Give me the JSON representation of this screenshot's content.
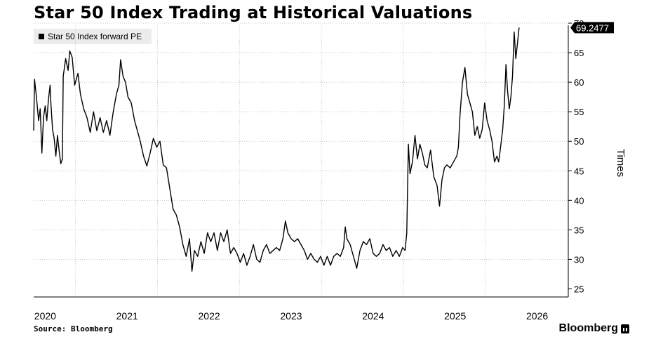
{
  "chart_data": {
    "type": "line",
    "title": "Star 50 Index Trading at Historical Valuations",
    "legend": "Star 50 Index forward PE",
    "ylabel": "Times",
    "ylim": [
      25,
      70
    ],
    "yticks": [
      25,
      30,
      35,
      40,
      45,
      50,
      55,
      60,
      65,
      70
    ],
    "xlim": [
      2019.86,
      2026.38
    ],
    "xticks": [
      {
        "label": "2020",
        "x": 2020.0
      },
      {
        "label": "2021",
        "x": 2021.0
      },
      {
        "label": "2022",
        "x": 2022.0
      },
      {
        "label": "2023",
        "x": 2023.0
      },
      {
        "label": "2024",
        "x": 2024.0
      },
      {
        "label": "2025",
        "x": 2025.0
      },
      {
        "label": "2026",
        "x": 2026.0
      }
    ],
    "x_gridlines": [
      2020.37,
      2021.37,
      2022.37,
      2023.37,
      2024.37,
      2025.37
    ],
    "grid": true,
    "last_value_label": "69.2477",
    "series": [
      {
        "name": "Star 50 Index forward PE",
        "color": "#000000",
        "points": [
          [
            2019.86,
            51.8
          ],
          [
            2019.87,
            60.5
          ],
          [
            2019.89,
            58.0
          ],
          [
            2019.9,
            56.5
          ],
          [
            2019.92,
            53.5
          ],
          [
            2019.94,
            55.5
          ],
          [
            2019.96,
            48.0
          ],
          [
            2019.98,
            54.0
          ],
          [
            2020.0,
            56.0
          ],
          [
            2020.02,
            53.5
          ],
          [
            2020.04,
            57.0
          ],
          [
            2020.06,
            59.5
          ],
          [
            2020.07,
            56.5
          ],
          [
            2020.09,
            52.0
          ],
          [
            2020.11,
            50.5
          ],
          [
            2020.13,
            47.5
          ],
          [
            2020.15,
            51.0
          ],
          [
            2020.17,
            48.5
          ],
          [
            2020.19,
            46.2
          ],
          [
            2020.21,
            47.0
          ],
          [
            2020.22,
            61.0
          ],
          [
            2020.25,
            64.0
          ],
          [
            2020.28,
            62.0
          ],
          [
            2020.3,
            65.3
          ],
          [
            2020.33,
            64.2
          ],
          [
            2020.36,
            59.5
          ],
          [
            2020.4,
            61.5
          ],
          [
            2020.43,
            58.0
          ],
          [
            2020.47,
            55.5
          ],
          [
            2020.51,
            54.0
          ],
          [
            2020.55,
            51.5
          ],
          [
            2020.59,
            55.0
          ],
          [
            2020.63,
            51.8
          ],
          [
            2020.67,
            54.0
          ],
          [
            2020.71,
            51.5
          ],
          [
            2020.75,
            53.5
          ],
          [
            2020.79,
            51.0
          ],
          [
            2020.83,
            55.0
          ],
          [
            2020.87,
            58.0
          ],
          [
            2020.9,
            59.5
          ],
          [
            2020.92,
            63.8
          ],
          [
            2020.95,
            61.0
          ],
          [
            2020.98,
            60.0
          ],
          [
            2021.01,
            57.5
          ],
          [
            2021.05,
            56.5
          ],
          [
            2021.09,
            53.5
          ],
          [
            2021.12,
            52.0
          ],
          [
            2021.16,
            50.0
          ],
          [
            2021.2,
            47.5
          ],
          [
            2021.24,
            45.8
          ],
          [
            2021.28,
            48.0
          ],
          [
            2021.32,
            50.5
          ],
          [
            2021.36,
            49.0
          ],
          [
            2021.4,
            50.0
          ],
          [
            2021.44,
            46.0
          ],
          [
            2021.48,
            45.5
          ],
          [
            2021.52,
            42.0
          ],
          [
            2021.56,
            38.5
          ],
          [
            2021.6,
            37.5
          ],
          [
            2021.64,
            35.5
          ],
          [
            2021.68,
            32.5
          ],
          [
            2021.72,
            30.5
          ],
          [
            2021.76,
            33.5
          ],
          [
            2021.79,
            28.0
          ],
          [
            2021.82,
            31.5
          ],
          [
            2021.86,
            30.5
          ],
          [
            2021.9,
            33.0
          ],
          [
            2021.94,
            31.0
          ],
          [
            2021.98,
            34.5
          ],
          [
            2022.02,
            33.0
          ],
          [
            2022.06,
            34.5
          ],
          [
            2022.1,
            31.5
          ],
          [
            2022.14,
            34.5
          ],
          [
            2022.18,
            33.0
          ],
          [
            2022.22,
            35.0
          ],
          [
            2022.26,
            31.0
          ],
          [
            2022.3,
            32.0
          ],
          [
            2022.34,
            31.0
          ],
          [
            2022.38,
            29.5
          ],
          [
            2022.42,
            31.0
          ],
          [
            2022.46,
            29.0
          ],
          [
            2022.5,
            30.5
          ],
          [
            2022.54,
            32.5
          ],
          [
            2022.58,
            30.0
          ],
          [
            2022.62,
            29.5
          ],
          [
            2022.66,
            31.5
          ],
          [
            2022.7,
            32.5
          ],
          [
            2022.74,
            31.0
          ],
          [
            2022.78,
            31.5
          ],
          [
            2022.82,
            32.0
          ],
          [
            2022.86,
            31.5
          ],
          [
            2022.9,
            33.5
          ],
          [
            2022.93,
            36.5
          ],
          [
            2022.96,
            34.5
          ],
          [
            2023.0,
            33.5
          ],
          [
            2023.04,
            33.0
          ],
          [
            2023.08,
            33.5
          ],
          [
            2023.12,
            32.5
          ],
          [
            2023.16,
            31.5
          ],
          [
            2023.2,
            30.0
          ],
          [
            2023.24,
            31.0
          ],
          [
            2023.28,
            30.0
          ],
          [
            2023.32,
            29.5
          ],
          [
            2023.36,
            30.5
          ],
          [
            2023.4,
            29.0
          ],
          [
            2023.44,
            30.5
          ],
          [
            2023.48,
            29.0
          ],
          [
            2023.52,
            30.5
          ],
          [
            2023.56,
            31.0
          ],
          [
            2023.6,
            30.5
          ],
          [
            2023.64,
            32.0
          ],
          [
            2023.66,
            35.5
          ],
          [
            2023.68,
            33.5
          ],
          [
            2023.72,
            32.5
          ],
          [
            2023.76,
            30.5
          ],
          [
            2023.8,
            28.5
          ],
          [
            2023.84,
            31.5
          ],
          [
            2023.88,
            33.0
          ],
          [
            2023.92,
            32.5
          ],
          [
            2023.96,
            33.5
          ],
          [
            2024.0,
            31.0
          ],
          [
            2024.04,
            30.5
          ],
          [
            2024.08,
            31.0
          ],
          [
            2024.12,
            32.5
          ],
          [
            2024.16,
            31.5
          ],
          [
            2024.2,
            32.0
          ],
          [
            2024.24,
            30.5
          ],
          [
            2024.28,
            31.5
          ],
          [
            2024.32,
            30.5
          ],
          [
            2024.36,
            32.0
          ],
          [
            2024.39,
            31.5
          ],
          [
            2024.41,
            34.5
          ],
          [
            2024.43,
            49.5
          ],
          [
            2024.45,
            44.5
          ],
          [
            2024.48,
            46.5
          ],
          [
            2024.51,
            51.0
          ],
          [
            2024.54,
            47.0
          ],
          [
            2024.57,
            49.5
          ],
          [
            2024.6,
            48.0
          ],
          [
            2024.63,
            46.0
          ],
          [
            2024.66,
            45.5
          ],
          [
            2024.7,
            48.5
          ],
          [
            2024.74,
            44.0
          ],
          [
            2024.78,
            42.5
          ],
          [
            2024.81,
            39.0
          ],
          [
            2024.84,
            43.5
          ],
          [
            2024.87,
            45.5
          ],
          [
            2024.9,
            46.0
          ],
          [
            2024.94,
            45.5
          ],
          [
            2024.98,
            46.5
          ],
          [
            2025.02,
            47.5
          ],
          [
            2025.04,
            49.0
          ],
          [
            2025.06,
            54.5
          ],
          [
            2025.09,
            60.0
          ],
          [
            2025.12,
            62.5
          ],
          [
            2025.15,
            58.0
          ],
          [
            2025.18,
            56.5
          ],
          [
            2025.21,
            55.0
          ],
          [
            2025.24,
            51.0
          ],
          [
            2025.27,
            52.5
          ],
          [
            2025.3,
            50.5
          ],
          [
            2025.33,
            52.0
          ],
          [
            2025.36,
            56.5
          ],
          [
            2025.39,
            53.5
          ],
          [
            2025.42,
            52.0
          ],
          [
            2025.45,
            50.0
          ],
          [
            2025.48,
            46.5
          ],
          [
            2025.51,
            47.5
          ],
          [
            2025.53,
            46.5
          ],
          [
            2025.55,
            48.5
          ],
          [
            2025.58,
            52.0
          ],
          [
            2025.6,
            56.0
          ],
          [
            2025.62,
            63.0
          ],
          [
            2025.64,
            58.5
          ],
          [
            2025.66,
            55.5
          ],
          [
            2025.68,
            57.5
          ],
          [
            2025.7,
            61.0
          ],
          [
            2025.72,
            68.5
          ],
          [
            2025.74,
            64.0
          ],
          [
            2025.76,
            66.5
          ],
          [
            2025.78,
            69.2477
          ]
        ]
      }
    ]
  },
  "footer": {
    "source": "Source: Bloomberg",
    "brand": "Bloomberg"
  }
}
